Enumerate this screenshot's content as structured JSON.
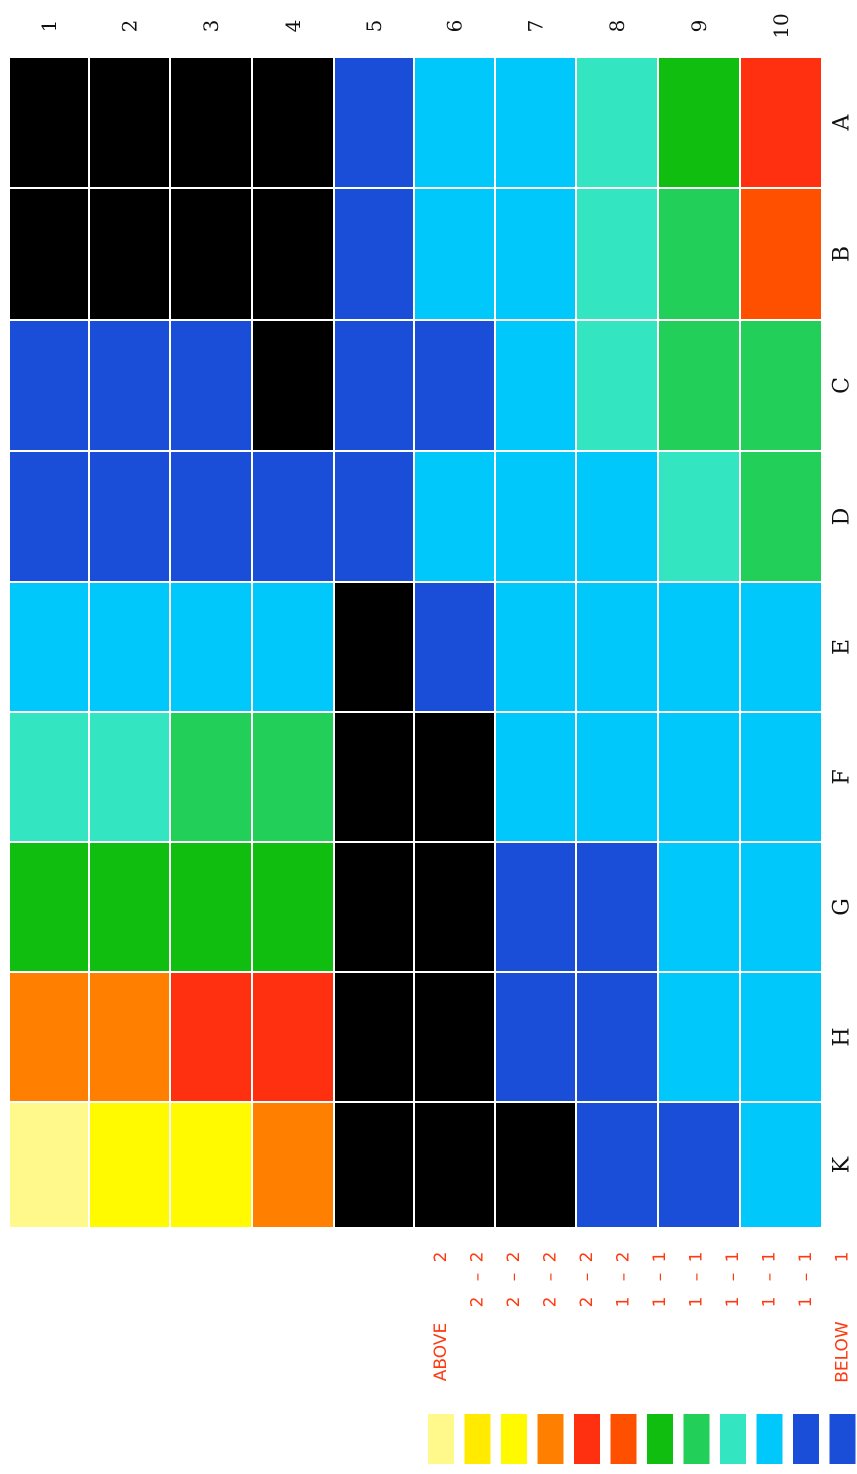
{
  "chart_data": {
    "type": "heatmap",
    "columns": [
      "1",
      "2",
      "3",
      "4",
      "5",
      "6",
      "7",
      "8",
      "9",
      "10"
    ],
    "rows": [
      "A",
      "B",
      "C",
      "D",
      "E",
      "F",
      "G",
      "H",
      "K"
    ],
    "palette": {
      "0": "#000000",
      "1": "#1a4ed8",
      "2": "#00c8fa",
      "3": "#33e5c0",
      "4": "#22cf58",
      "5": "#10be10",
      "6": "#ff5000",
      "7": "#ff3010",
      "8": "#ff8000",
      "9": "#ffea00",
      "10": "#fffa00",
      "11": "#fff88a"
    },
    "cells": [
      [
        0,
        0,
        0,
        0,
        1,
        2,
        2,
        3,
        5,
        7
      ],
      [
        0,
        0,
        0,
        0,
        1,
        2,
        2,
        3,
        4,
        6
      ],
      [
        1,
        1,
        1,
        0,
        1,
        1,
        2,
        3,
        4,
        4
      ],
      [
        1,
        1,
        1,
        1,
        1,
        2,
        2,
        2,
        3,
        4
      ],
      [
        2,
        2,
        2,
        2,
        0,
        1,
        2,
        2,
        2,
        2
      ],
      [
        3,
        3,
        4,
        4,
        0,
        0,
        2,
        2,
        2,
        2
      ],
      [
        5,
        5,
        5,
        5,
        0,
        0,
        1,
        1,
        2,
        2
      ],
      [
        8,
        8,
        7,
        7,
        0,
        0,
        1,
        1,
        2,
        2
      ],
      [
        11,
        10,
        10,
        8,
        0,
        0,
        0,
        1,
        1,
        2
      ]
    ],
    "legend": {
      "items": [
        {
          "label": "ABOVE",
          "color": "#fff88a",
          "range": [
            "2"
          ]
        },
        {
          "label": "",
          "color": "#ffea00",
          "range": [
            "2",
            "–",
            "2"
          ]
        },
        {
          "label": "",
          "color": "#fffa00",
          "range": [
            "2",
            "–",
            "2"
          ]
        },
        {
          "label": "",
          "color": "#ff8000",
          "range": [
            "2",
            "–",
            "2"
          ]
        },
        {
          "label": "",
          "color": "#ff3010",
          "range": [
            "2",
            "–",
            "2"
          ]
        },
        {
          "label": "",
          "color": "#ff5000",
          "range": [
            "1",
            "–",
            "2"
          ]
        },
        {
          "label": "",
          "color": "#10be10",
          "range": [
            "1",
            "–",
            "1"
          ]
        },
        {
          "label": "",
          "color": "#22cf58",
          "range": [
            "1",
            "–",
            "1"
          ]
        },
        {
          "label": "",
          "color": "#33e5c0",
          "range": [
            "1",
            "–",
            "1"
          ]
        },
        {
          "label": "",
          "color": "#00c8fa",
          "range": [
            "1",
            "–",
            "1"
          ]
        },
        {
          "label": "",
          "color": "#1a4ed8",
          "range": [
            "1",
            "–",
            "1"
          ]
        },
        {
          "label": "BELOW",
          "color": "#1a4ed8",
          "range": [
            "1"
          ]
        }
      ],
      "label_color": "#ff3a10"
    },
    "orientation": "rotated-90-ccw"
  }
}
